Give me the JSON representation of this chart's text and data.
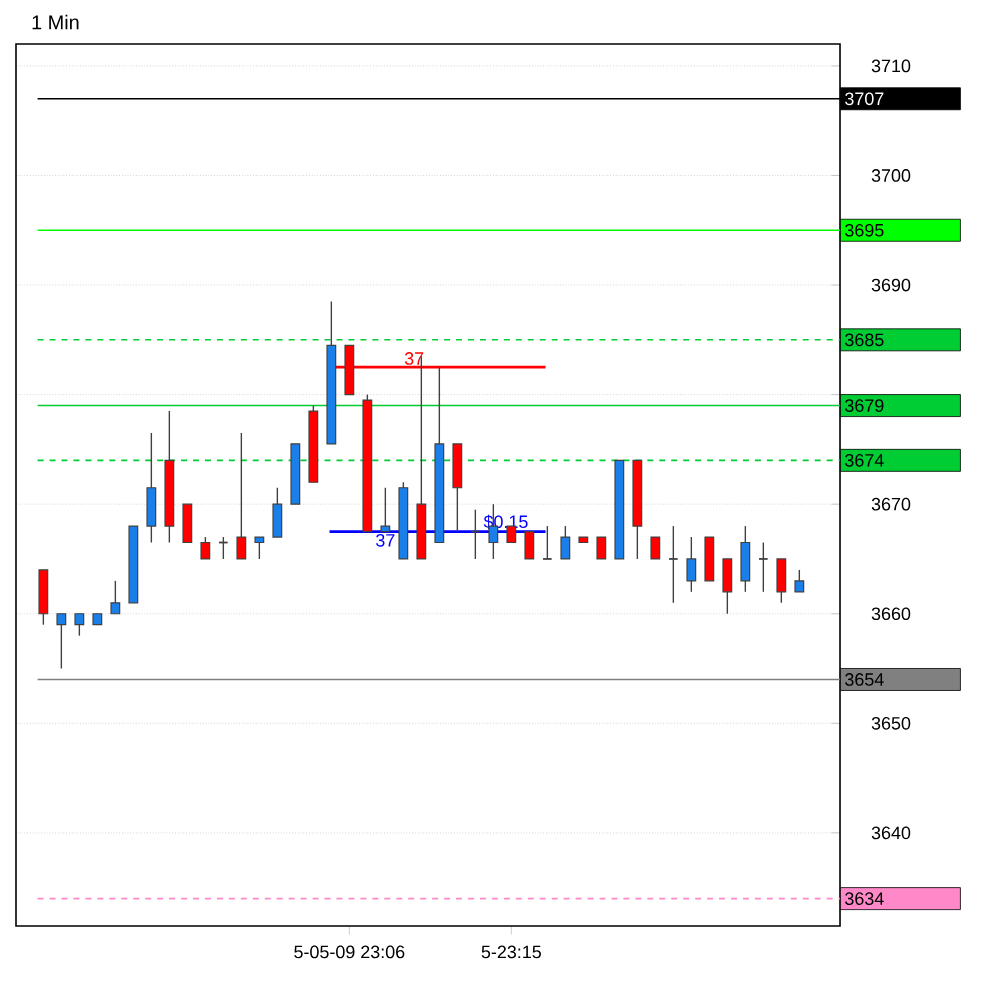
{
  "chart_data": {
    "type": "candlestick",
    "title": "1 Min",
    "categories": [
      null,
      null,
      null,
      null,
      null,
      null,
      null,
      null,
      null,
      null,
      null,
      null,
      null,
      null,
      null,
      null,
      null,
      "5-05-09 23:06",
      null,
      null,
      null,
      null,
      null,
      null,
      null,
      null,
      "5-23:15",
      null,
      null,
      null,
      null,
      null,
      null,
      null,
      null,
      null,
      null,
      null,
      null,
      null,
      null,
      null,
      null
    ],
    "ohlc": [
      [
        3664,
        3664,
        3659,
        3660
      ],
      [
        3659,
        3660,
        3655,
        3660
      ],
      [
        3659,
        3660,
        3658,
        3660
      ],
      [
        3659,
        3660,
        3659,
        3660
      ],
      [
        3660,
        3663,
        3660,
        3661
      ],
      [
        3661,
        3668,
        3661,
        3668
      ],
      [
        3668,
        3676.5,
        3666.5,
        3671.5
      ],
      [
        3674,
        3678.5,
        3666.5,
        3668
      ],
      [
        3670,
        3670,
        3666.5,
        3666.5
      ],
      [
        3666.5,
        3667,
        3665,
        3665
      ],
      [
        3666.5,
        3667,
        3665,
        3666.5
      ],
      [
        3667,
        3676.5,
        3665,
        3665
      ],
      [
        3666.5,
        3667,
        3665,
        3667
      ],
      [
        3667,
        3671.5,
        3667,
        3670
      ],
      [
        3670,
        3675.5,
        3670,
        3675.5
      ],
      [
        3678.5,
        3679,
        3672,
        3672
      ],
      [
        3675.5,
        3688.5,
        3675.5,
        3684.5
      ],
      [
        3684.5,
        3684.5,
        3680,
        3680
      ],
      [
        3679.5,
        3680,
        3667.5,
        3667.5
      ],
      [
        3667.5,
        3671.5,
        3667.5,
        3668
      ],
      [
        3665,
        3672,
        3665,
        3671.5
      ],
      [
        3670,
        3683.5,
        3665,
        3665
      ],
      [
        3666.5,
        3682.5,
        3666.5,
        3675.5
      ],
      [
        3675.5,
        3675.5,
        3667.5,
        3671.5
      ],
      [
        3667.5,
        3669.5,
        3665,
        3667.5
      ],
      [
        3666.5,
        3670,
        3665,
        3668
      ],
      [
        3668,
        3668,
        3666.5,
        3666.5
      ],
      [
        3667.5,
        3667.5,
        3665,
        3665
      ],
      [
        3665,
        3668,
        3665,
        3665
      ],
      [
        3665,
        3668,
        3665,
        3667
      ],
      [
        3667,
        3667,
        3666.5,
        3666.5
      ],
      [
        3667,
        3667,
        3665,
        3665
      ],
      [
        3665,
        3674,
        3665,
        3674
      ],
      [
        3674,
        3674,
        3665,
        3668
      ],
      [
        3667,
        3667,
        3665,
        3665
      ],
      [
        3665,
        3668,
        3661,
        3665
      ],
      [
        3663,
        3667,
        3662,
        3665
      ],
      [
        3667,
        3667,
        3663,
        3663
      ],
      [
        3665,
        3665,
        3660,
        3662
      ],
      [
        3663,
        3668,
        3662,
        3666.5
      ],
      [
        3665,
        3666.5,
        3662,
        3665
      ],
      [
        3665,
        3665,
        3661,
        3662
      ],
      [
        3662,
        3664,
        3662,
        3663
      ]
    ],
    "colors": [
      "#ff0000",
      "#1a7fe8",
      "#1a7fe8",
      "#1a7fe8",
      "#1a7fe8",
      "#1a7fe8",
      "#1a7fe8",
      "#ff0000",
      "#ff0000",
      "#ff0000",
      "#404040",
      "#ff0000",
      "#1a7fe8",
      "#1a7fe8",
      "#1a7fe8",
      "#ff0000",
      "#1a7fe8",
      "#ff0000",
      "#ff0000",
      "#1a7fe8",
      "#1a7fe8",
      "#ff0000",
      "#1a7fe8",
      "#ff0000",
      "#404040",
      "#1a7fe8",
      "#ff0000",
      "#ff0000",
      "#404040",
      "#1a7fe8",
      "#ff0000",
      "#ff0000",
      "#1a7fe8",
      "#ff0000",
      "#ff0000",
      "#404040",
      "#1a7fe8",
      "#ff0000",
      "#ff0000",
      "#1a7fe8",
      "#404040",
      "#ff0000",
      "#1a7fe8"
    ],
    "ylim": [
      3631.5,
      3712
    ],
    "yticks": [
      3640,
      3650,
      3660,
      3670,
      {
        "value": 3680,
        "label": null
      },
      3690,
      3700,
      3710
    ],
    "grid": "y",
    "ref_lines": [
      {
        "axis": "y",
        "value": 3707,
        "label": "3707",
        "color": "#000000"
      },
      {
        "axis": "y",
        "value": 3695,
        "label": "3695",
        "color": "#00ff00"
      },
      {
        "axis": "y",
        "value": 3685,
        "label": "3685",
        "color": "#00cc33",
        "line_style": "dashed"
      },
      {
        "axis": "y",
        "value": 3679,
        "label": "3679",
        "color": "#00cc33"
      },
      {
        "axis": "y",
        "value": 3674,
        "label": "3674",
        "color": "#00cc33",
        "line_style": "dashed"
      },
      {
        "axis": "y",
        "value": 3654,
        "label": "3654",
        "color": "#808080"
      },
      {
        "axis": "y",
        "value": 3634,
        "label": "3634",
        "color": "#ff88c8",
        "line_style": "dashed"
      },
      {
        "axis": "y",
        "value": 3682.5,
        "color": "#ff0000"
      },
      {
        "axis": "y",
        "value": 3667.5,
        "color": "#0000ff"
      }
    ],
    "annotations": [
      {
        "text": "37",
        "y": 3682.5
      },
      {
        "text": "$0.15",
        "y": 3667.5
      },
      {
        "text": "37",
        "y": 3667.5
      }
    ]
  }
}
